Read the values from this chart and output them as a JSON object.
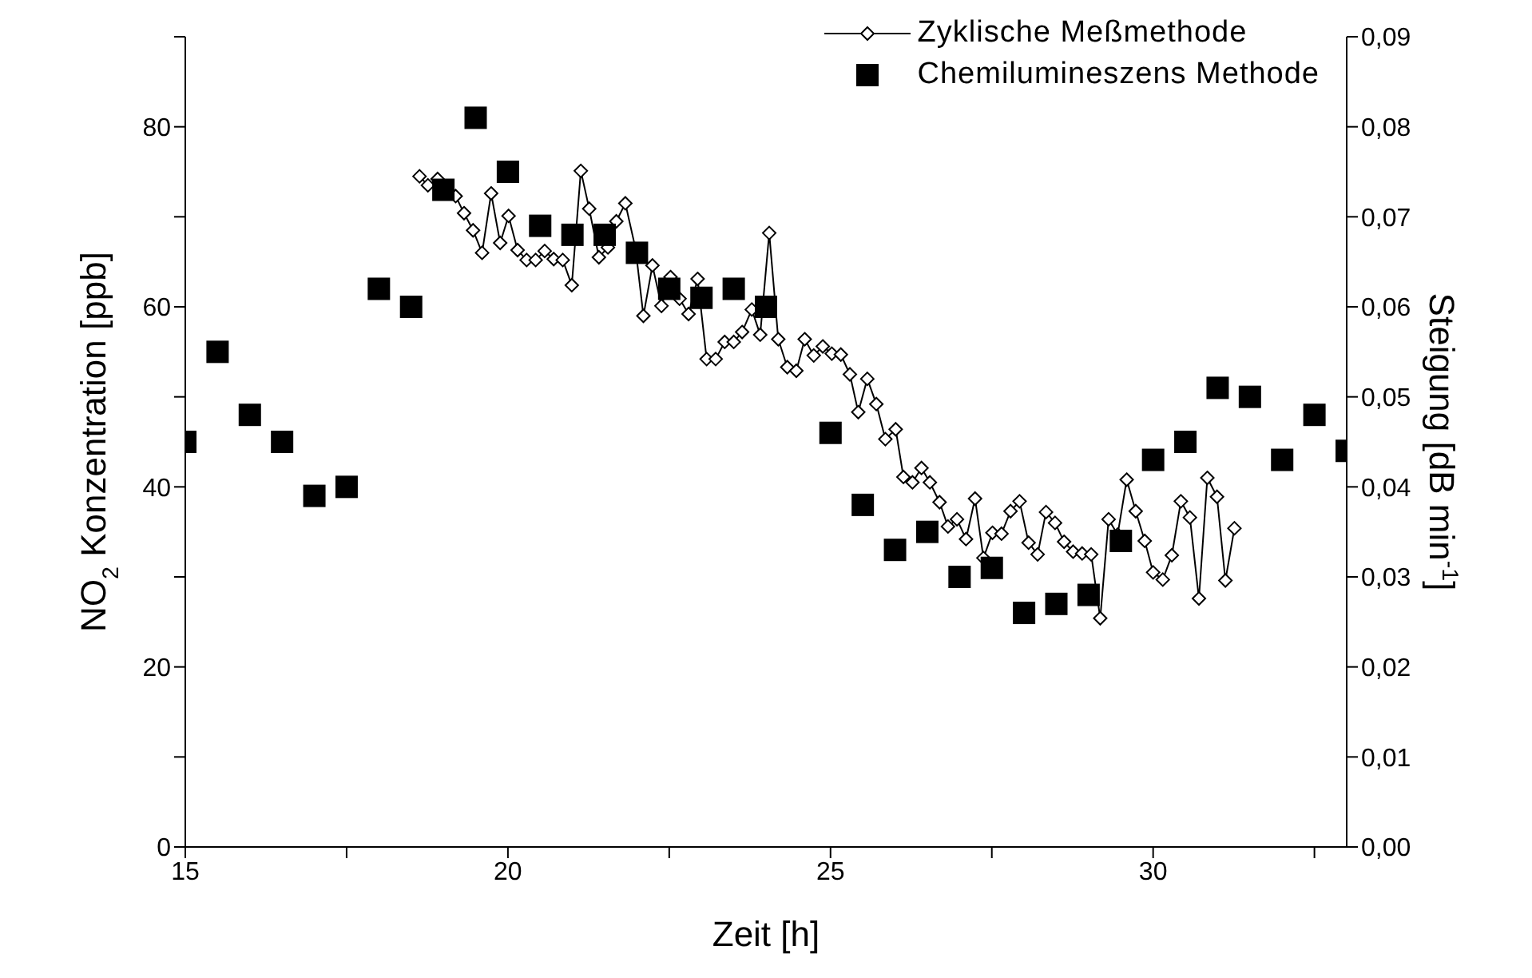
{
  "chart_data": {
    "type": "scatter",
    "xlabel": "Zeit [h]",
    "ylabel": "NO$_{2}$ Konzentration [ppb]",
    "y2label": "Steigung [dB min$^{-1}$]",
    "xlim": [
      15,
      33
    ],
    "xticks": [
      15,
      {
        "value": 17.5,
        "label": null
      },
      20,
      {
        "value": 22.5,
        "label": null
      },
      25,
      {
        "value": 27.5,
        "label": null
      },
      30,
      {
        "value": 32.5,
        "label": null
      }
    ],
    "ylim": [
      0,
      90
    ],
    "yticks": [
      0,
      {
        "value": 10,
        "label": null
      },
      20,
      {
        "value": 30,
        "label": null
      },
      40,
      {
        "value": 50,
        "label": null
      },
      60,
      {
        "value": 70,
        "label": null
      },
      80,
      {
        "value": 90,
        "label": null
      }
    ],
    "y2lim": [
      0,
      0.09
    ],
    "y2ticks": [
      {
        "value": 0,
        "label": "0,00"
      },
      {
        "value": 0.01,
        "label": "0,01"
      },
      {
        "value": 0.02,
        "label": "0,02"
      },
      {
        "value": 0.03,
        "label": "0,03"
      },
      {
        "value": 0.04,
        "label": "0,04"
      },
      {
        "value": 0.05,
        "label": "0,05"
      },
      {
        "value": 0.06,
        "label": "0,06"
      },
      {
        "value": 0.07,
        "label": "0,07"
      },
      {
        "value": 0.08,
        "label": "0,08"
      },
      {
        "value": 0.09,
        "label": "0,09"
      }
    ],
    "legend": "top right",
    "grid": false,
    "series": [
      {
        "name": "Zyklische Meßmethode",
        "type": "line",
        "axis": "y2",
        "color": "#000000",
        "marker": "diamond",
        "line_style": "solid",
        "x": [
          18.63,
          18.76,
          18.91,
          19.06,
          19.19,
          19.32,
          19.46,
          19.6,
          19.74,
          19.88,
          20.01,
          20.15,
          20.29,
          20.43,
          20.57,
          20.71,
          20.85,
          20.99,
          21.13,
          21.26,
          21.41,
          21.55,
          21.68,
          21.82,
          21.98,
          22.1,
          22.24,
          22.38,
          22.52,
          22.66,
          22.8,
          22.94,
          23.08,
          23.22,
          23.36,
          23.5,
          23.63,
          23.78,
          23.91,
          24.05,
          24.19,
          24.33,
          24.47,
          24.6,
          24.74,
          24.88,
          25.02,
          25.16,
          25.3,
          25.43,
          25.57,
          25.71,
          25.85,
          26.01,
          26.13,
          26.27,
          26.41,
          26.54,
          26.69,
          26.82,
          26.96,
          27.1,
          27.24,
          27.37,
          27.51,
          27.65,
          27.79,
          27.93,
          28.07,
          28.21,
          28.34,
          28.48,
          28.62,
          28.76,
          28.9,
          29.04,
          29.18,
          29.31,
          29.45,
          29.59,
          29.73,
          29.87,
          30.0,
          30.15,
          30.29,
          30.43,
          30.57,
          30.71,
          30.84,
          30.99,
          31.12,
          31.26
        ],
        "values": [
          0.0745,
          0.0735,
          0.0742,
          0.073,
          0.0723,
          0.0704,
          0.0685,
          0.066,
          0.0726,
          0.0671,
          0.0701,
          0.0663,
          0.0652,
          0.0652,
          0.0662,
          0.0653,
          0.0652,
          0.0624,
          0.0751,
          0.0709,
          0.0655,
          0.0666,
          0.0695,
          0.0715,
          0.0664,
          0.059,
          0.0646,
          0.0601,
          0.0633,
          0.0609,
          0.0592,
          0.0631,
          0.0542,
          0.0542,
          0.0561,
          0.0561,
          0.0572,
          0.0597,
          0.0569,
          0.0682,
          0.0564,
          0.0533,
          0.0529,
          0.0564,
          0.0546,
          0.0556,
          0.0548,
          0.0547,
          0.0525,
          0.0483,
          0.052,
          0.0492,
          0.0453,
          0.0464,
          0.0411,
          0.0405,
          0.0421,
          0.0405,
          0.0383,
          0.0356,
          0.0364,
          0.0342,
          0.0387,
          0.0321,
          0.0349,
          0.0348,
          0.0373,
          0.0384,
          0.0338,
          0.0325,
          0.0372,
          0.036,
          0.0339,
          0.0328,
          0.0326,
          0.0325,
          0.0254,
          0.0364,
          0.0347,
          0.0408,
          0.0373,
          0.034,
          0.0305,
          0.0297,
          0.0324,
          0.0384,
          0.0366,
          0.0276,
          0.041,
          0.0389,
          0.0296,
          0.0354
        ]
      },
      {
        "name": "Chemilumineszens Methode",
        "color": "#000000",
        "marker": "square",
        "x": [
          15,
          15.5,
          16,
          16.5,
          17,
          17.5,
          18,
          18.5,
          19,
          19.5,
          20,
          20.5,
          21,
          21.5,
          22,
          22.5,
          23,
          23.5,
          24,
          25,
          25.5,
          26,
          26.5,
          27,
          27.5,
          28,
          28.5,
          29,
          29.5,
          30,
          30.5,
          31,
          31.5,
          32,
          32.5,
          33
        ],
        "values": [
          45,
          55,
          48,
          45,
          39,
          40,
          62,
          60,
          73,
          81,
          75,
          69,
          68,
          68,
          66,
          62,
          61,
          62,
          60,
          46,
          38,
          33,
          35,
          30,
          31,
          26,
          27,
          28,
          34,
          43,
          45,
          51,
          50,
          43,
          48,
          44
        ]
      }
    ]
  }
}
